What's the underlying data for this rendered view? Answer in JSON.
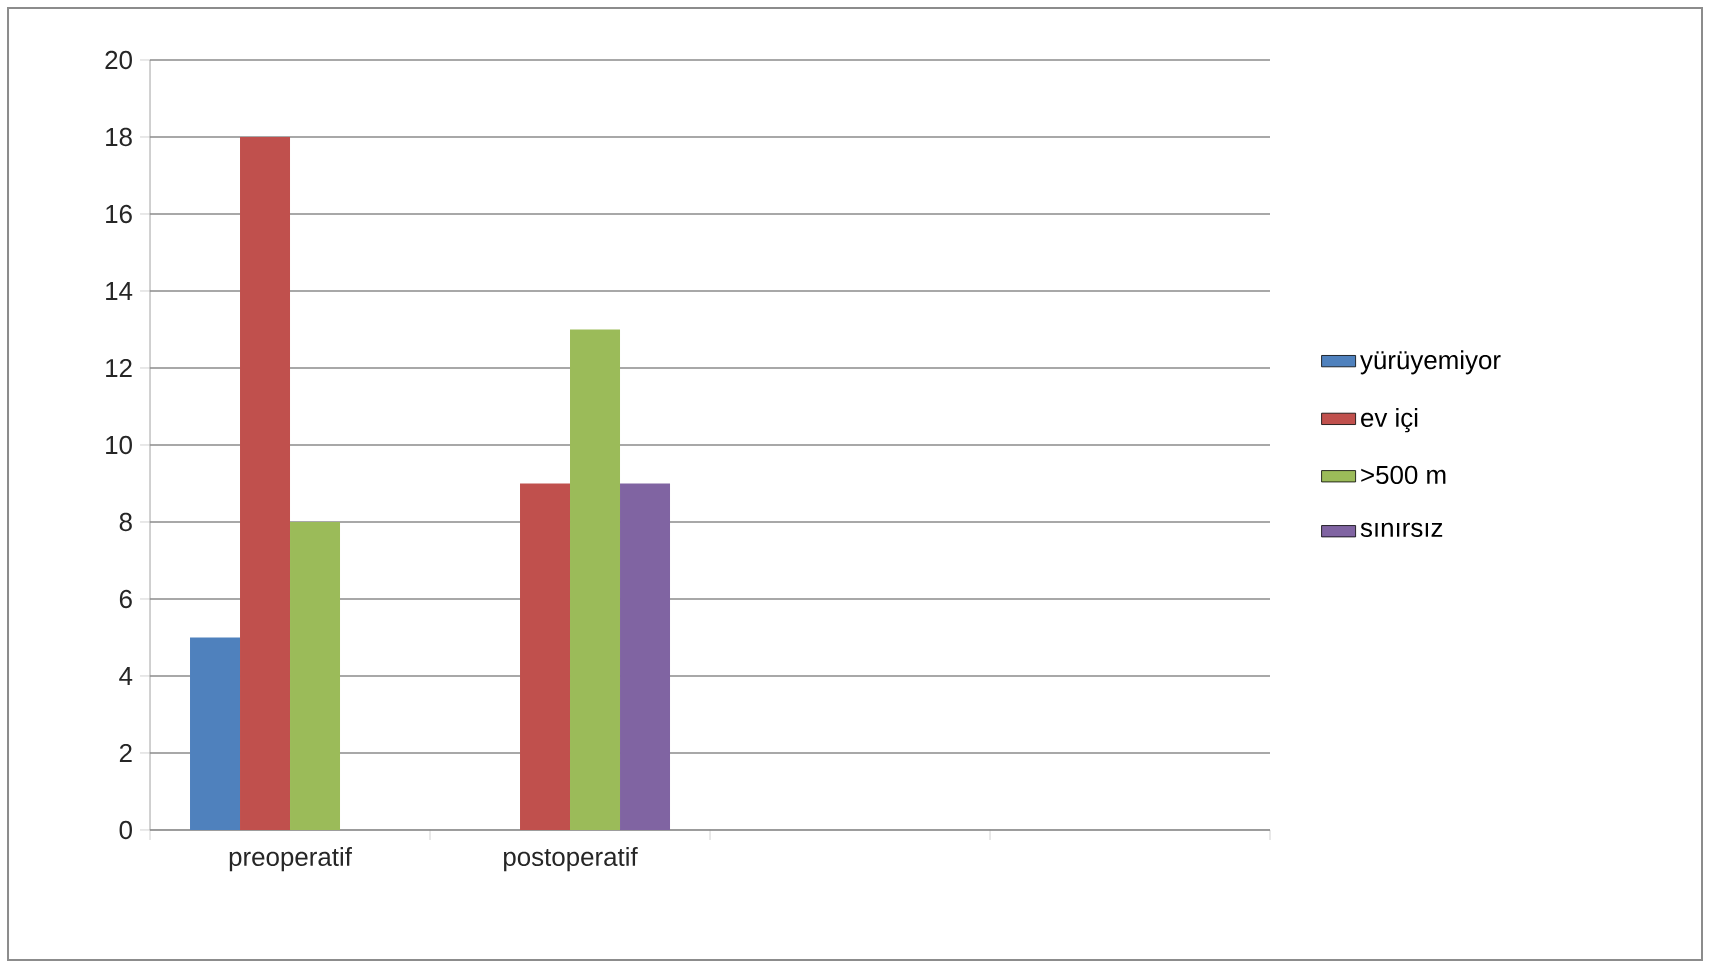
{
  "chart_data": {
    "type": "bar",
    "categories": [
      "preoperatif",
      "postoperatif",
      null,
      null
    ],
    "series": [
      {
        "name": "yürüyemiyor",
        "color": "#4f81bd",
        "values": [
          5,
          null,
          null,
          null
        ]
      },
      {
        "name": "ev içi",
        "color": "#c0504d",
        "values": [
          18,
          9,
          null,
          null
        ]
      },
      {
        "name": ">500 m",
        "color": "#9bbb59",
        "values": [
          8,
          13,
          null,
          null
        ]
      },
      {
        "name": "sınırsız",
        "color": "#8064a2",
        "values": [
          null,
          9,
          null,
          null
        ]
      }
    ],
    "ylim": [
      0,
      20
    ],
    "yticks": [
      0,
      2,
      4,
      6,
      8,
      10,
      12,
      14,
      16,
      18,
      20
    ],
    "grid": "y",
    "legend": "right"
  }
}
